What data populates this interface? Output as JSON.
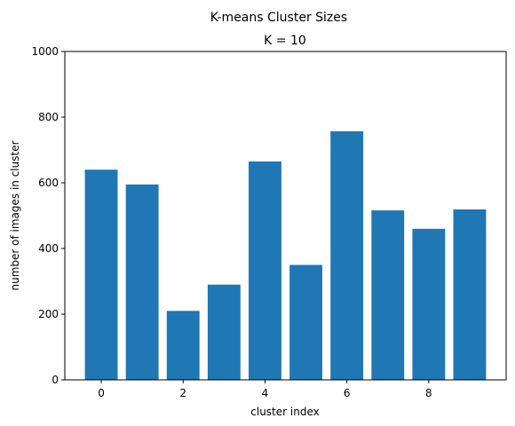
{
  "chart_data": {
    "type": "bar",
    "title": "K-means Cluster Sizes",
    "subtitle": "K = 10",
    "xlabel": "cluster index",
    "ylabel": "number of images in cluster",
    "categories": [
      0,
      1,
      2,
      3,
      4,
      5,
      6,
      7,
      8,
      9
    ],
    "values": [
      640,
      595,
      210,
      290,
      665,
      350,
      757,
      516,
      460,
      519
    ],
    "xlim": [
      -0.89,
      9.89
    ],
    "ylim": [
      0,
      1000
    ],
    "xticks": [
      0,
      2,
      4,
      6,
      8
    ],
    "yticks": [
      0,
      200,
      400,
      600,
      800,
      1000
    ],
    "bar_color": "#1f77b4",
    "grid": false,
    "legend": "none"
  }
}
